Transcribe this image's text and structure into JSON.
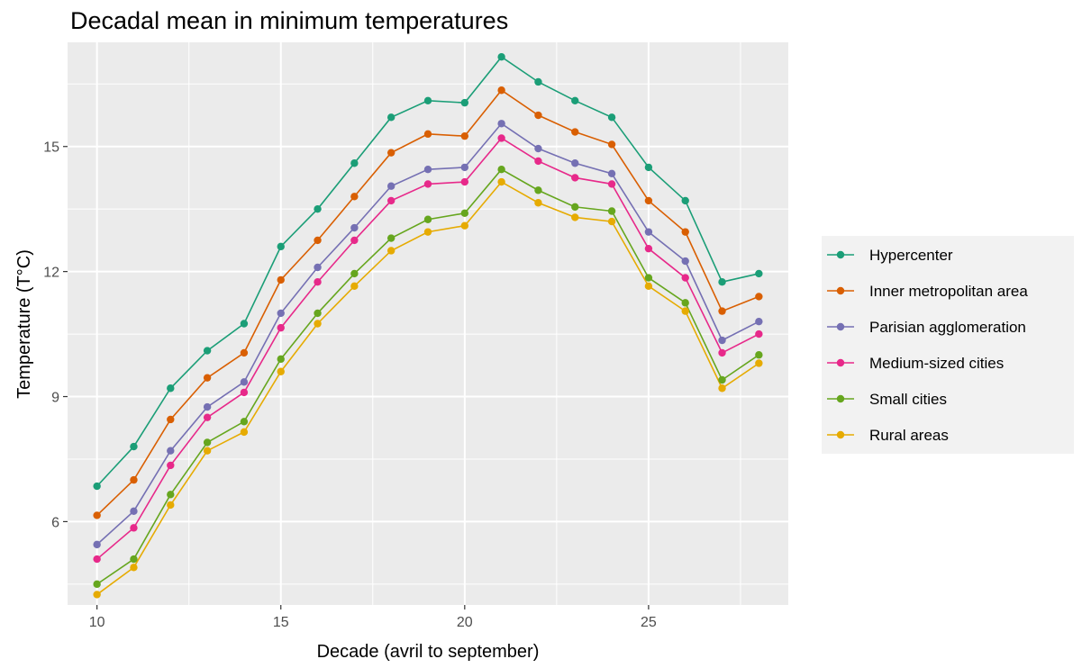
{
  "chart_data": {
    "type": "line",
    "title": "Decadal mean in minimum temperatures",
    "xlabel": "Decade (avril to september)",
    "ylabel": "Temperature (T°C)",
    "x": [
      10,
      11,
      12,
      13,
      14,
      15,
      16,
      17,
      18,
      19,
      20,
      21,
      22,
      23,
      24,
      25,
      26,
      27,
      28
    ],
    "xlim": [
      9.2,
      28.8
    ],
    "ylim": [
      4.0,
      17.5
    ],
    "x_ticks": [
      10,
      15,
      20,
      25
    ],
    "y_ticks": [
      6,
      9,
      12,
      15
    ],
    "grid": true,
    "legend_position": "right",
    "series": [
      {
        "name": "Hypercenter",
        "color": "#1B9E77",
        "values": [
          6.85,
          7.8,
          9.2,
          10.1,
          10.75,
          12.6,
          13.5,
          14.6,
          15.7,
          16.1,
          16.05,
          17.15,
          16.55,
          16.1,
          15.7,
          14.5,
          13.7,
          11.75,
          11.95
        ]
      },
      {
        "name": "Inner metropolitan area",
        "color": "#D95F02",
        "values": [
          6.15,
          7.0,
          8.45,
          9.45,
          10.05,
          11.8,
          12.75,
          13.8,
          14.85,
          15.3,
          15.25,
          16.35,
          15.75,
          15.35,
          15.05,
          13.7,
          12.95,
          11.05,
          11.4
        ]
      },
      {
        "name": "Parisian agglomeration",
        "color": "#7570B3",
        "values": [
          5.45,
          6.25,
          7.7,
          8.75,
          9.35,
          11.0,
          12.1,
          13.05,
          14.05,
          14.45,
          14.5,
          15.55,
          14.95,
          14.6,
          14.35,
          12.95,
          12.25,
          10.35,
          10.8
        ]
      },
      {
        "name": "Medium-sized cities",
        "color": "#E7298A",
        "values": [
          5.1,
          5.85,
          7.35,
          8.5,
          9.1,
          10.65,
          11.75,
          12.75,
          13.7,
          14.1,
          14.15,
          15.2,
          14.65,
          14.25,
          14.1,
          12.55,
          11.85,
          10.05,
          10.5
        ]
      },
      {
        "name": "Small cities",
        "color": "#66A61E",
        "values": [
          4.5,
          5.1,
          6.65,
          7.9,
          8.4,
          9.9,
          11.0,
          11.95,
          12.8,
          13.25,
          13.4,
          14.45,
          13.95,
          13.55,
          13.45,
          11.85,
          11.25,
          9.4,
          10.0
        ]
      },
      {
        "name": "Rural areas",
        "color": "#E6AB02",
        "values": [
          4.25,
          4.9,
          6.4,
          7.7,
          8.15,
          9.6,
          10.75,
          11.65,
          12.5,
          12.95,
          13.1,
          14.15,
          13.65,
          13.3,
          13.2,
          11.65,
          11.05,
          9.2,
          9.8
        ]
      }
    ]
  }
}
